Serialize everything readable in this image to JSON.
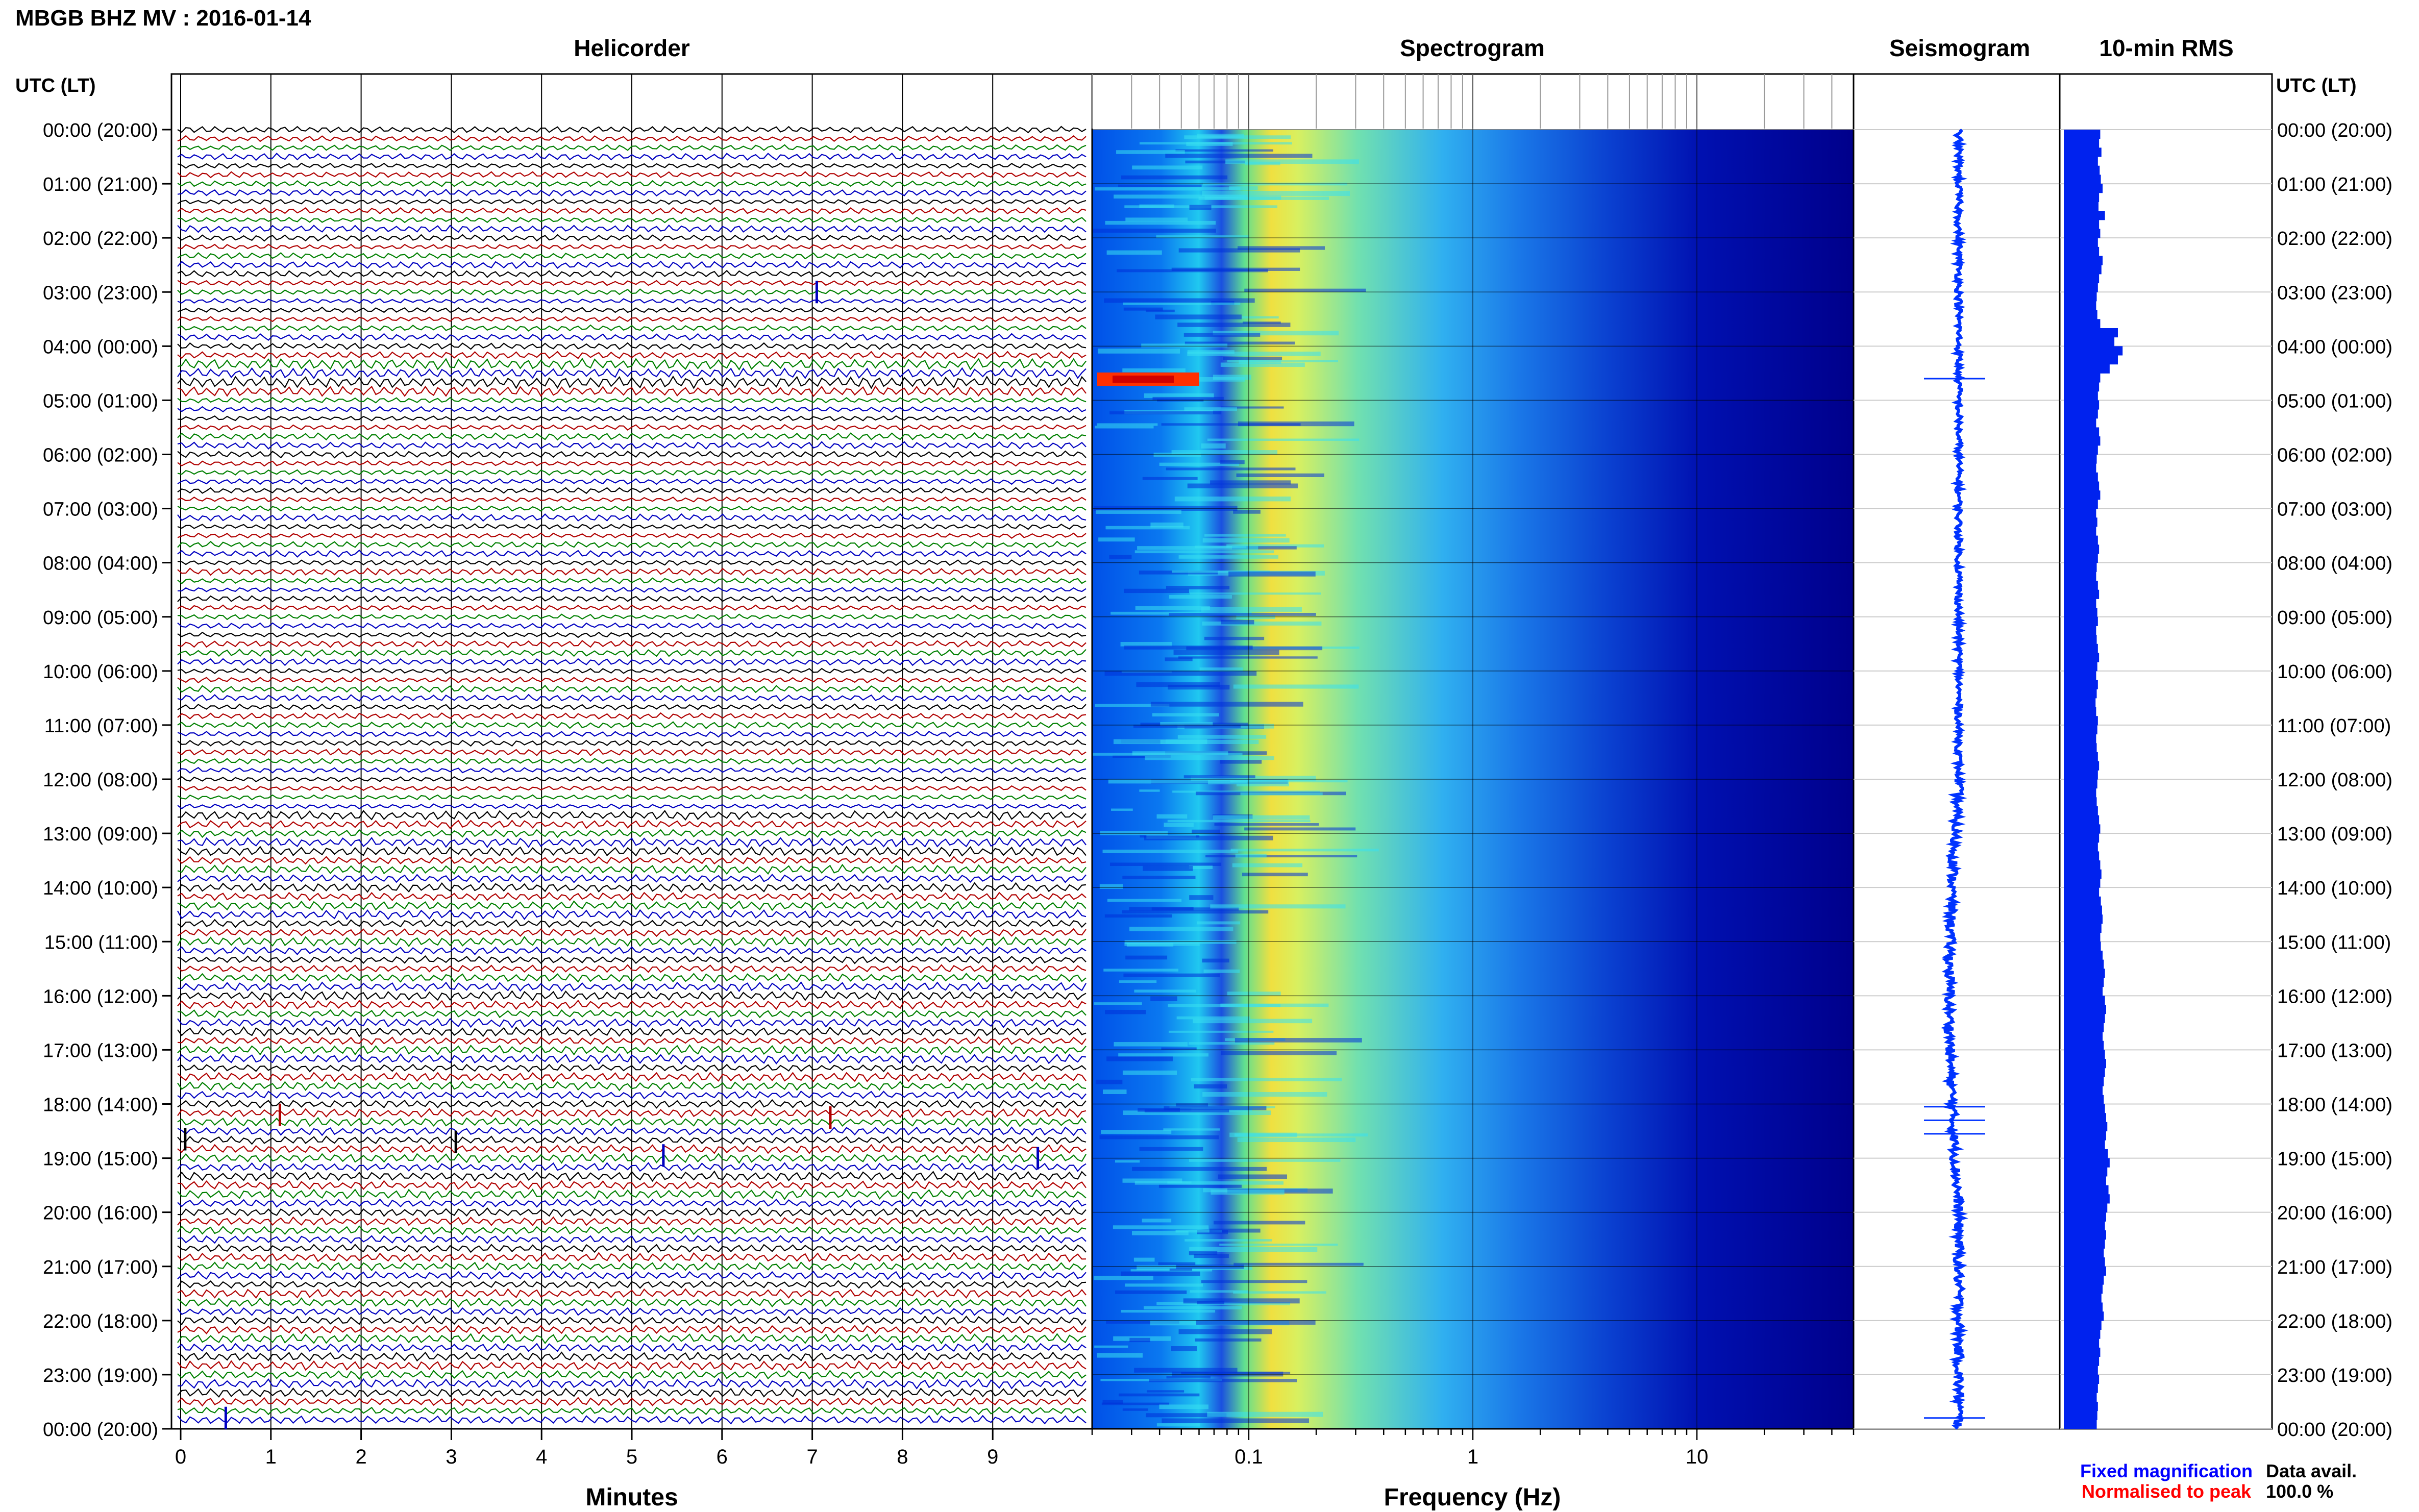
{
  "header": {
    "title": "MBGB BHZ MV : 2016-01-14",
    "utc_label_left": "UTC (LT)",
    "utc_label_right": "UTC (LT)"
  },
  "panels": {
    "helicorder": "Helicorder",
    "spectrogram": "Spectrogram",
    "seismogram": "Seismogram",
    "rms": "10-min RMS"
  },
  "legend": {
    "fixed": "Fixed magnification",
    "normalised": "Normalised to peak",
    "fixed_color": "#0000ff",
    "normalised_color": "#ff0000"
  },
  "availability": {
    "label": "Data avail.",
    "value": "100.0 %"
  },
  "colors": {
    "trace_cycle": [
      "#000000",
      "#b00000",
      "#008000",
      "#0000c0"
    ],
    "seismogram": "#0033ff",
    "rms_bars": "#0022ee",
    "spectrogram_low": "#00008b",
    "spectrogram_high": "#ff0000"
  },
  "chart_data": [
    {
      "type": "line",
      "panel": "helicorder",
      "xlabel": "Minutes",
      "xlim": [
        0,
        10
      ],
      "x_ticks": [
        "0",
        "1",
        "2",
        "3",
        "4",
        "5",
        "6",
        "7",
        "8",
        "9"
      ],
      "y_time_labels": [
        "00:00 (20:00)",
        "01:00 (21:00)",
        "02:00 (22:00)",
        "03:00 (23:00)",
        "04:00 (00:00)",
        "05:00 (01:00)",
        "06:00 (02:00)",
        "07:00 (03:00)",
        "08:00 (04:00)",
        "09:00 (05:00)",
        "10:00 (06:00)",
        "11:00 (07:00)",
        "12:00 (08:00)",
        "13:00 (09:00)",
        "14:00 (10:00)",
        "15:00 (11:00)",
        "16:00 (12:00)",
        "17:00 (13:00)",
        "18:00 (14:00)",
        "19:00 (15:00)",
        "20:00 (16:00)",
        "21:00 (17:00)",
        "22:00 (18:00)",
        "23:00 (19:00)",
        "00:00 (20:00)"
      ],
      "rows": 144,
      "row_minutes": 10
    },
    {
      "type": "heatmap",
      "panel": "spectrogram",
      "xlabel": "Frequency (Hz)",
      "x_scale": "log",
      "xlim": [
        0.02,
        50
      ],
      "x_ticks": [
        0.1,
        1,
        10
      ],
      "x_tick_labels": [
        "0.1",
        "1",
        "10"
      ]
    },
    {
      "type": "line",
      "panel": "seismogram",
      "events_hours": [
        18.05,
        18.3,
        18.55,
        4.6,
        23.8
      ]
    },
    {
      "type": "bar",
      "panel": "rms",
      "orientation": "horizontal",
      "values": [
        0.62,
        0.6,
        0.64,
        0.58,
        0.61,
        0.63,
        0.66,
        0.6,
        0.59,
        0.7,
        0.6,
        0.62,
        0.58,
        0.6,
        0.66,
        0.64,
        0.6,
        0.58,
        0.56,
        0.55,
        0.57,
        0.62,
        0.92,
        0.86,
        1.0,
        0.92,
        0.78,
        0.62,
        0.6,
        0.58,
        0.6,
        0.58,
        0.55,
        0.6,
        0.62,
        0.58,
        0.56,
        0.55,
        0.58,
        0.6,
        0.62,
        0.58,
        0.55,
        0.57,
        0.55,
        0.58,
        0.6,
        0.58,
        0.56,
        0.55,
        0.58,
        0.6,
        0.55,
        0.57,
        0.58,
        0.55,
        0.56,
        0.58,
        0.6,
        0.57,
        0.55,
        0.58,
        0.56,
        0.54,
        0.55,
        0.58,
        0.57,
        0.55,
        0.56,
        0.58,
        0.6,
        0.58,
        0.57,
        0.55,
        0.56,
        0.58,
        0.6,
        0.62,
        0.6,
        0.58,
        0.6,
        0.62,
        0.64,
        0.62,
        0.6,
        0.63,
        0.65,
        0.66,
        0.64,
        0.62,
        0.63,
        0.66,
        0.68,
        0.7,
        0.68,
        0.66,
        0.7,
        0.72,
        0.7,
        0.68,
        0.66,
        0.68,
        0.7,
        0.72,
        0.7,
        0.68,
        0.66,
        0.68,
        0.7,
        0.72,
        0.74,
        0.72,
        0.7,
        0.75,
        0.78,
        0.74,
        0.72,
        0.76,
        0.78,
        0.74,
        0.72,
        0.7,
        0.72,
        0.7,
        0.68,
        0.7,
        0.72,
        0.68,
        0.66,
        0.64,
        0.66,
        0.68,
        0.64,
        0.62,
        0.6,
        0.62,
        0.6,
        0.58,
        0.6,
        0.58,
        0.56,
        0.58,
        0.57,
        0.56
      ]
    }
  ]
}
